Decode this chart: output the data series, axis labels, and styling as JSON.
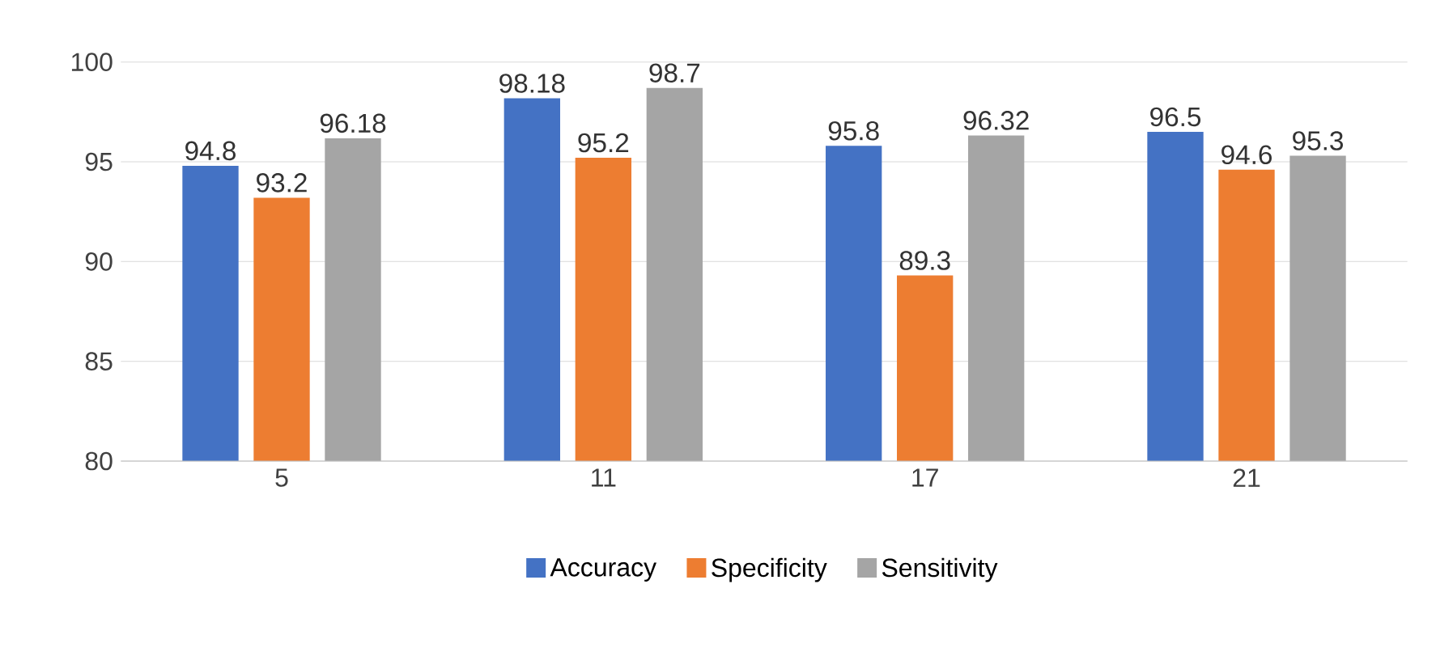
{
  "chart_data": {
    "type": "bar",
    "categories": [
      "5",
      "11",
      "17",
      "21"
    ],
    "series": [
      {
        "name": "Accuracy",
        "color": "#4472c4",
        "values": [
          94.8,
          98.18,
          95.8,
          96.5
        ]
      },
      {
        "name": "Specificity",
        "color": "#ed7d31",
        "values": [
          93.2,
          95.2,
          89.3,
          94.6
        ]
      },
      {
        "name": "Sensitivity",
        "color": "#a5a5a5",
        "values": [
          96.18,
          98.7,
          96.32,
          95.3
        ]
      }
    ],
    "ylim": [
      80,
      100
    ],
    "yticks": [
      80,
      85,
      90,
      95,
      100
    ],
    "grid": "y",
    "legend": "bottom",
    "data_labels": true
  }
}
